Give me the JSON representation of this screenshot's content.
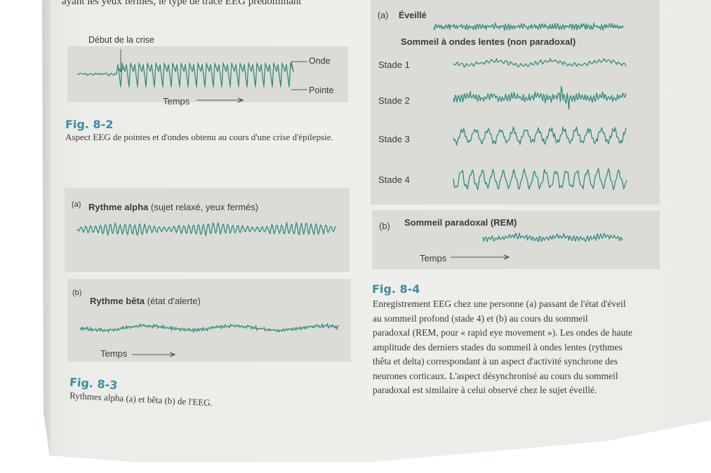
{
  "top_text": "ayant les yeux fermés, le type de tracé EEG prédominant",
  "fig82": {
    "onset_label": "Début de la crise",
    "wave_label": "Onde",
    "spike_label": "Pointe",
    "time_label": "Temps",
    "fig_label": "Fig. 8-2",
    "caption": "Aspect EEG de pointes et d'ondes obtenu au cours d'une crise d'épilepsie."
  },
  "fig83": {
    "a_marker": "(a)",
    "a_title_bold": "Rythme alpha",
    "a_title_rest": "(sujet relaxé, yeux fermés)",
    "b_marker": "(b)",
    "b_title_bold": "Rythme bêta",
    "b_title_rest": "(état d'alerte)",
    "time_label": "Temps",
    "fig_label": "Fig. 8-3",
    "caption": "Rythmes alpha (a) et bêta (b) de l'EEG."
  },
  "fig84": {
    "a_marker": "(a)",
    "a_title": "Éveillé",
    "slow_sleep_title": "Sommeil à ondes lentes (non paradoxal)",
    "stages": [
      "Stade 1",
      "Stade 2",
      "Stade 3",
      "Stade 4"
    ],
    "b_marker": "(b)",
    "b_title": "Sommeil paradoxal (REM)",
    "time_label": "Temps",
    "fig_label": "Fig. 8-4",
    "caption_lines": [
      "Enregistrement EEG chez une personne (a) passant de l'état d'éveil",
      "au sommeil profond (stade 4) et (b) au cours du sommeil",
      "paradoxal (REM, pour « rapid eye movement »). Les ondes de haute",
      "amplitude des derniers stades du sommeil à ondes lentes (rythmes",
      "thêta et delta) correspondant à un aspect d'activité synchrone des",
      "neurones corticaux. L'aspect désynchronisé au cours du sommeil",
      "paradoxal est similaire à celui observé chez le sujet éveillé."
    ]
  },
  "colors": {
    "trace": "#2f8c7f",
    "fig_label": "#3d8ca3",
    "panel": "#dcdcd7"
  }
}
